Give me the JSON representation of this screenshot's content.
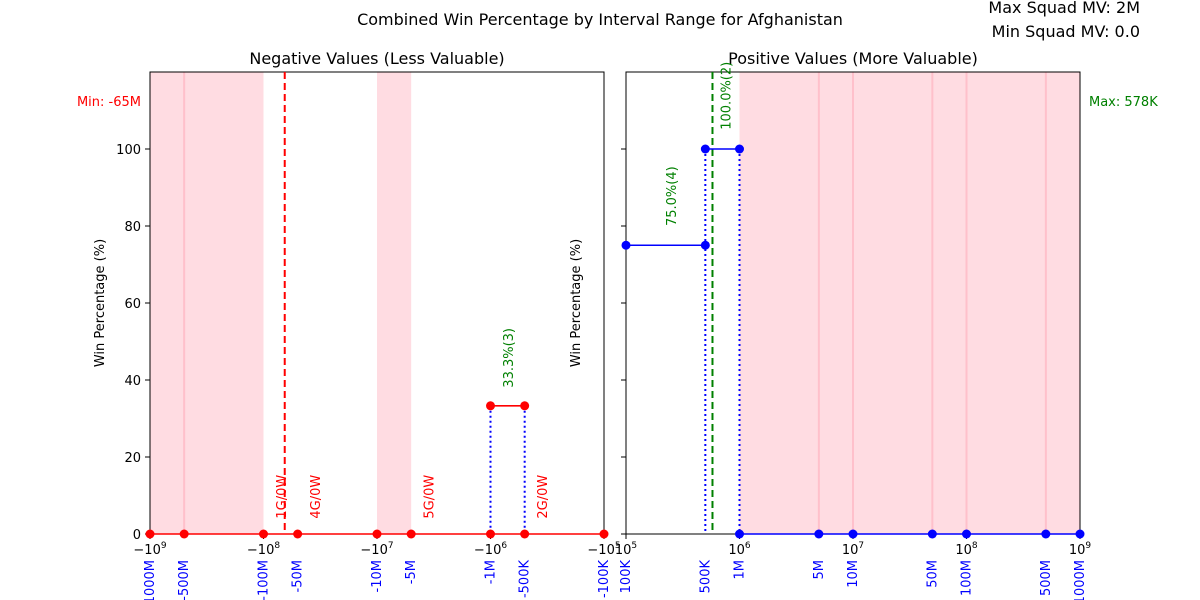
{
  "figure": {
    "title": "Combined Win Percentage by Interval Range for Afghanistan",
    "max_squad_mv": "Max Squad MV: 2M",
    "min_squad_mv": "Min Squad MV: 0.0"
  },
  "colors": {
    "negative_line": "#ff0000",
    "positive_line": "#0000ff",
    "highlight_band": "#ffc0cb",
    "tick_label_blue": "#0000ff",
    "annotation_red": "#ff0000",
    "annotation_green": "#008000"
  },
  "chart_data": [
    {
      "type": "line",
      "title": "Negative Values (Less Valuable)",
      "ylabel": "Win Percentage (%)",
      "xscale": "symlog-negative",
      "xlim": [
        -1000000000,
        -100000
      ],
      "ylim": [
        0,
        120
      ],
      "y_ticks": [
        0,
        20,
        40,
        60,
        80,
        100
      ],
      "x_major_ticks": [
        {
          "value": -1000000000,
          "label": "−10",
          "exp": "9"
        },
        {
          "value": -100000000,
          "label": "−10",
          "exp": "8"
        },
        {
          "value": -10000000,
          "label": "−10",
          "exp": "7"
        },
        {
          "value": -1000000,
          "label": "−10",
          "exp": "6"
        },
        {
          "value": -100000,
          "label": "−10",
          "exp": "5"
        }
      ],
      "x_interval_labels": [
        {
          "value": -1000000000,
          "label": "-1000M"
        },
        {
          "value": -500000000,
          "label": "-500M"
        },
        {
          "value": -100000000,
          "label": "-100M"
        },
        {
          "value": -50000000,
          "label": "-50M"
        },
        {
          "value": -10000000,
          "label": "-10M"
        },
        {
          "value": -5000000,
          "label": "-5M"
        },
        {
          "value": -1000000,
          "label": "-1M"
        },
        {
          "value": -500000,
          "label": "-500K"
        },
        {
          "value": -100000,
          "label": "-100K"
        }
      ],
      "bands": [
        [
          -1000000000,
          -100000000
        ],
        [
          -10000000,
          -5000000
        ]
      ],
      "band_lines": [
        -500000000
      ],
      "series": [
        {
          "x": [
            -1000000000,
            -500000000,
            -100000000,
            -50000000,
            -10000000,
            -5000000,
            -1000000,
            -500000,
            -100000
          ],
          "y": [
            0,
            0,
            0,
            0,
            0,
            0,
            0,
            0,
            0
          ]
        },
        {
          "x": [
            -1000000,
            -500000
          ],
          "y": [
            33.3,
            33.3
          ]
        }
      ],
      "dotted_verticals": [
        -1000000,
        -500000
      ],
      "reference_line": {
        "value": -65000000,
        "label": "Min: -65M"
      },
      "annotations": [
        {
          "x": -70000000,
          "y": 4,
          "text": "1G/0W",
          "color": "red"
        },
        {
          "x": -35000000,
          "y": 4,
          "text": "4G/0W",
          "color": "red"
        },
        {
          "x": -3500000,
          "y": 4,
          "text": "5G/0W",
          "color": "red"
        },
        {
          "x": -350000,
          "y": 4,
          "text": "2G/0W",
          "color": "red"
        },
        {
          "x": -700000,
          "y": 38,
          "text": "33.3%(3)",
          "color": "green"
        }
      ]
    },
    {
      "type": "line",
      "title": "Positive Values (More Valuable)",
      "ylabel": "Win Percentage (%)",
      "xscale": "log",
      "xlim": [
        100000,
        1000000000
      ],
      "ylim": [
        0,
        120
      ],
      "x_major_ticks": [
        {
          "value": 100000,
          "label": "10",
          "exp": "5"
        },
        {
          "value": 1000000,
          "label": "10",
          "exp": "6"
        },
        {
          "value": 10000000,
          "label": "10",
          "exp": "7"
        },
        {
          "value": 100000000,
          "label": "10",
          "exp": "8"
        },
        {
          "value": 1000000000,
          "label": "10",
          "exp": "9"
        }
      ],
      "x_interval_labels": [
        {
          "value": 100000,
          "label": "100K"
        },
        {
          "value": 500000,
          "label": "500K"
        },
        {
          "value": 1000000,
          "label": "1M"
        },
        {
          "value": 5000000,
          "label": "5M"
        },
        {
          "value": 10000000,
          "label": "10M"
        },
        {
          "value": 50000000,
          "label": "50M"
        },
        {
          "value": 100000000,
          "label": "100M"
        },
        {
          "value": 500000000,
          "label": "500M"
        },
        {
          "value": 1000000000,
          "label": "1000M"
        }
      ],
      "bands": [
        [
          1000000,
          1000000000
        ]
      ],
      "band_lines": [
        5000000,
        10000000,
        50000000,
        100000000,
        500000000
      ],
      "series": [
        {
          "x": [
            100000,
            500000
          ],
          "y": [
            75,
            75
          ]
        },
        {
          "x": [
            500000,
            1000000
          ],
          "y": [
            100,
            100
          ]
        },
        {
          "x": [
            1000000,
            5000000,
            10000000,
            50000000,
            100000000,
            500000000,
            1000000000
          ],
          "y": [
            0,
            0,
            0,
            0,
            0,
            0,
            0
          ]
        }
      ],
      "dotted_verticals": [
        500000,
        1000000
      ],
      "reference_line": {
        "value": 578000,
        "label": "Max: 578K"
      },
      "annotations": [
        {
          "x": 250000,
          "y": 80,
          "text": "75.0%(4)",
          "color": "green"
        },
        {
          "x": 750000,
          "y": 105,
          "text": "100.0%(2)",
          "color": "green"
        }
      ]
    }
  ]
}
